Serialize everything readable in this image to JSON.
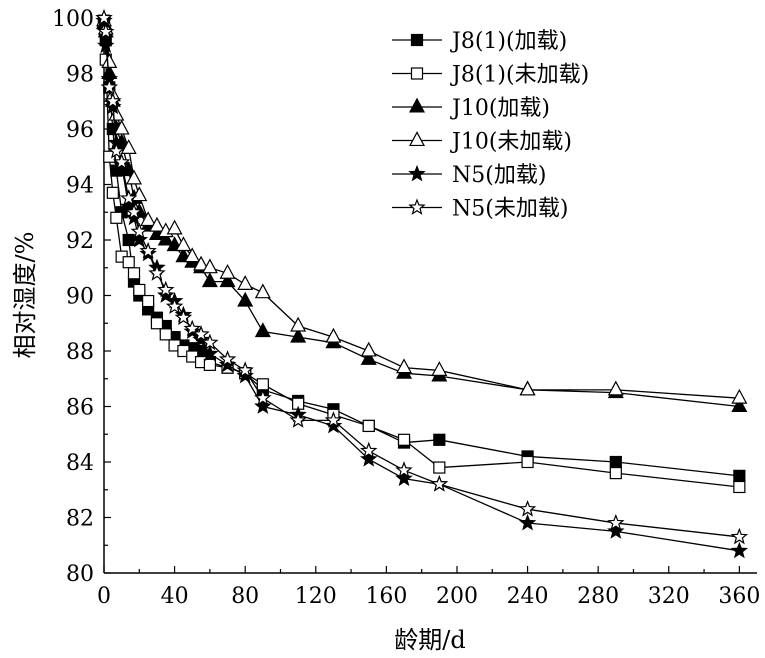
{
  "chart_data": {
    "type": "line",
    "xlabel": "龄期/d",
    "ylabel": "相对湿度/%",
    "xlim": [
      0,
      370
    ],
    "ylim": [
      80,
      100
    ],
    "xticks": [
      0,
      40,
      80,
      120,
      160,
      200,
      240,
      280,
      320,
      360
    ],
    "yticks": [
      80,
      82,
      84,
      86,
      88,
      90,
      92,
      94,
      96,
      98,
      100
    ],
    "legend_position": "top-right",
    "series": [
      {
        "name": "J8(1)(加载)",
        "marker": "square-filled",
        "x": [
          0,
          1,
          3,
          5,
          7,
          10,
          14,
          17,
          20,
          25,
          30,
          35,
          40,
          45,
          50,
          55,
          60,
          70,
          80,
          90,
          110,
          130,
          150,
          170,
          190,
          240,
          290,
          360
        ],
        "y": [
          99.9,
          99.2,
          97.5,
          96.0,
          94.5,
          93.0,
          92.0,
          90.5,
          90.0,
          89.5,
          89.2,
          88.9,
          88.5,
          88.2,
          88.1,
          88.0,
          87.6,
          87.4,
          87.2,
          86.6,
          86.2,
          85.9,
          85.3,
          84.7,
          84.8,
          84.2,
          84.0,
          83.5
        ]
      },
      {
        "name": "J8(1)(未加载)",
        "marker": "square-open",
        "x": [
          0,
          1,
          3,
          5,
          7,
          10,
          14,
          17,
          20,
          25,
          30,
          35,
          40,
          45,
          50,
          55,
          60,
          70,
          80,
          90,
          110,
          130,
          150,
          170,
          190,
          240,
          290,
          360
        ],
        "y": [
          99.9,
          98.5,
          95.0,
          93.7,
          92.8,
          91.4,
          91.2,
          90.8,
          90.2,
          89.8,
          89.0,
          88.6,
          88.2,
          88.0,
          87.8,
          87.6,
          87.5,
          87.4,
          87.2,
          86.8,
          86.1,
          85.7,
          85.3,
          84.8,
          83.8,
          84.0,
          83.6,
          83.1
        ]
      },
      {
        "name": "J10(加载)",
        "marker": "triangle-filled",
        "x": [
          0,
          1,
          3,
          5,
          7,
          10,
          14,
          17,
          20,
          25,
          30,
          35,
          40,
          45,
          50,
          55,
          60,
          70,
          80,
          90,
          110,
          130,
          150,
          170,
          190,
          240,
          290,
          360
        ],
        "y": [
          99.8,
          99.5,
          98.0,
          97.0,
          96.0,
          95.5,
          94.5,
          93.5,
          93.0,
          92.5,
          92.2,
          92.0,
          91.8,
          91.4,
          91.2,
          91.0,
          90.5,
          90.5,
          89.8,
          88.7,
          88.5,
          88.3,
          87.7,
          87.2,
          87.1,
          86.6,
          86.5,
          86.0
        ]
      },
      {
        "name": "J10(未加载)",
        "marker": "triangle-open",
        "x": [
          0,
          1,
          3,
          5,
          7,
          10,
          14,
          17,
          20,
          25,
          30,
          35,
          40,
          45,
          50,
          55,
          60,
          70,
          80,
          90,
          110,
          130,
          150,
          170,
          190,
          240,
          290,
          360
        ],
        "y": [
          99.9,
          99.6,
          98.4,
          97.2,
          96.5,
          96.0,
          95.3,
          94.2,
          93.6,
          92.7,
          92.5,
          92.3,
          92.4,
          91.8,
          91.4,
          91.1,
          91.0,
          90.8,
          90.4,
          90.1,
          88.9,
          88.5,
          88.0,
          87.4,
          87.3,
          86.6,
          86.6,
          86.3
        ]
      },
      {
        "name": "N5(加载)",
        "marker": "star-filled",
        "x": [
          0,
          1,
          3,
          5,
          7,
          10,
          14,
          17,
          20,
          25,
          30,
          35,
          40,
          45,
          50,
          55,
          60,
          70,
          80,
          90,
          110,
          130,
          150,
          170,
          190,
          240,
          290,
          360
        ],
        "y": [
          99.9,
          99.0,
          97.8,
          96.8,
          95.5,
          94.7,
          93.2,
          92.8,
          92.0,
          91.5,
          91.0,
          90.0,
          89.8,
          89.3,
          88.7,
          88.4,
          87.9,
          87.5,
          87.1,
          86.0,
          85.7,
          85.3,
          84.1,
          83.4,
          83.2,
          81.8,
          81.5,
          80.8
        ]
      },
      {
        "name": "N5(未加载)",
        "marker": "star-open",
        "x": [
          0,
          1,
          3,
          5,
          7,
          10,
          14,
          17,
          20,
          25,
          30,
          35,
          40,
          45,
          50,
          55,
          60,
          70,
          80,
          90,
          110,
          130,
          150,
          170,
          190,
          240,
          290,
          360
        ],
        "y": [
          100.0,
          99.5,
          97.5,
          97.0,
          95.2,
          94.8,
          93.5,
          93.0,
          92.3,
          91.6,
          90.8,
          90.2,
          89.6,
          89.2,
          88.8,
          88.6,
          88.3,
          87.7,
          87.3,
          86.3,
          85.5,
          85.5,
          84.4,
          83.7,
          83.2,
          82.3,
          81.8,
          81.3
        ]
      }
    ]
  }
}
